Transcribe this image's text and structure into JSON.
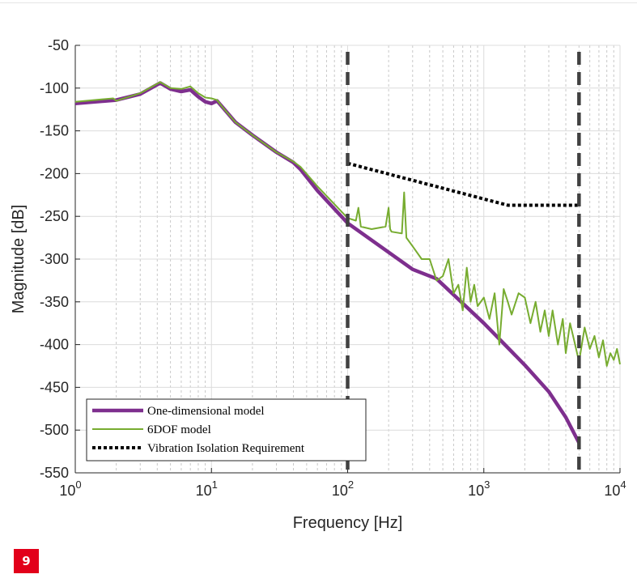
{
  "chart_data": {
    "type": "line",
    "xlabel": "Frequency [Hz]",
    "ylabel": "Magnitude [dB]",
    "xscale": "log",
    "xlim": [
      1,
      10000
    ],
    "ylim": [
      -550,
      -50
    ],
    "xticks": [
      1,
      10,
      100,
      1000,
      10000
    ],
    "xtick_labels": [
      {
        "base": "10",
        "exp": "0"
      },
      {
        "base": "10",
        "exp": "1"
      },
      {
        "base": "10",
        "exp": "2"
      },
      {
        "base": "10",
        "exp": "3"
      },
      {
        "base": "10",
        "exp": "4"
      }
    ],
    "yticks": [
      -50,
      -100,
      -150,
      -200,
      -250,
      -300,
      -350,
      -400,
      -450,
      -500,
      -550
    ],
    "grid": true,
    "legend_position": "bottom-left",
    "vertical_lines": [
      100,
      5000
    ],
    "series": [
      {
        "name": "One-dimensional model",
        "color": "#7e2f8e",
        "style": "solid-thick",
        "x": [
          1,
          2,
          3,
          4.2,
          5,
          6,
          7,
          8,
          9,
          10,
          11,
          12,
          15,
          20,
          30,
          40,
          45,
          60,
          100,
          200,
          300,
          450,
          1000,
          2000,
          3000,
          4000,
          5000
        ],
        "y": [
          -118,
          -114,
          -107,
          -94,
          -101,
          -104,
          -102,
          -110,
          -116,
          -118,
          -115,
          -122,
          -140,
          -155,
          -175,
          -187,
          -195,
          -220,
          -258,
          -292,
          -312,
          -323,
          -375,
          -424,
          -455,
          -485,
          -515
        ]
      },
      {
        "name": "6DOF model",
        "color": "#77ac30",
        "style": "solid",
        "x": [
          1,
          1.9,
          2,
          3,
          4.2,
          5,
          6,
          7,
          8,
          9,
          10,
          11,
          12,
          15,
          20,
          30,
          40,
          45,
          60,
          100,
          115,
          120,
          125,
          150,
          190,
          200,
          205,
          210,
          250,
          260,
          270,
          300,
          350,
          400,
          450,
          500,
          550,
          600,
          650,
          700,
          750,
          800,
          850,
          900,
          1000,
          1100,
          1200,
          1300,
          1400,
          1500,
          1600,
          1800,
          2000,
          2200,
          2400,
          2600,
          2800,
          3000,
          3200,
          3500,
          3800,
          4000,
          4300,
          4600,
          5000,
          5500,
          6000,
          6500,
          7000,
          7500,
          8000,
          8500,
          9000,
          9500,
          10000
        ],
        "y": [
          -116,
          -112,
          -115,
          -106,
          -93,
          -100,
          -101,
          -98,
          -106,
          -111,
          -112,
          -114,
          -122,
          -140,
          -155,
          -175,
          -186,
          -192,
          -215,
          -252,
          -255,
          -240,
          -262,
          -265,
          -262,
          -240,
          -265,
          -268,
          -270,
          -222,
          -275,
          -285,
          -300,
          -300,
          -325,
          -320,
          -300,
          -340,
          -330,
          -360,
          -310,
          -350,
          -330,
          -355,
          -345,
          -370,
          -340,
          -400,
          -335,
          -350,
          -365,
          -340,
          -345,
          -375,
          -350,
          -385,
          -360,
          -390,
          -360,
          -400,
          -370,
          -410,
          -375,
          -395,
          -420,
          -380,
          -405,
          -390,
          -415,
          -395,
          -425,
          -410,
          -418,
          -405,
          -423
        ]
      },
      {
        "name": "Vibration Isolation Requirement",
        "color": "#000000",
        "style": "dotted",
        "x": [
          100,
          1500,
          5000
        ],
        "y": [
          -188,
          -237,
          -237
        ]
      }
    ]
  },
  "figure_number": "9"
}
